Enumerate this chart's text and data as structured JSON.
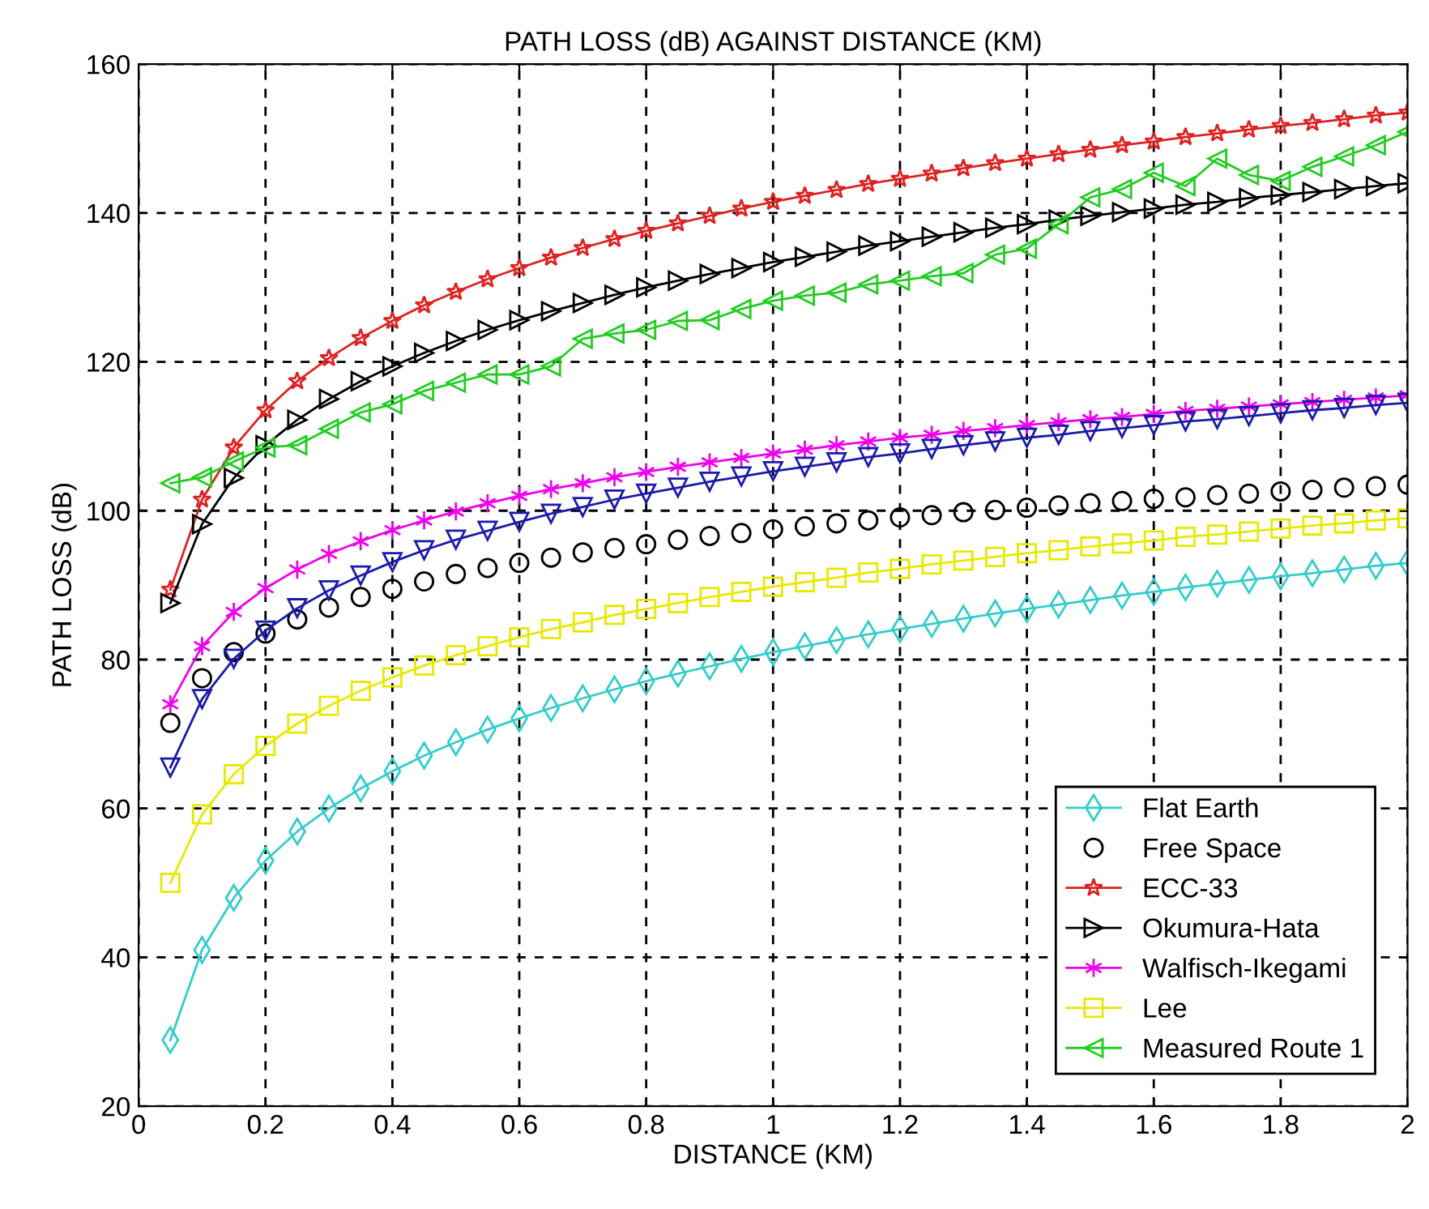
{
  "chart_data": {
    "type": "line",
    "title": "PATH LOSS (dB) AGAINST DISTANCE (KM)",
    "xlabel": "DISTANCE (KM)",
    "ylabel": "PATH LOSS (dB)",
    "x": [
      0.05,
      0.1,
      0.15,
      0.2,
      0.25,
      0.3,
      0.35,
      0.4,
      0.45,
      0.5,
      0.55,
      0.6,
      0.65,
      0.7,
      0.75,
      0.8,
      0.85,
      0.9,
      0.95,
      1.0,
      1.05,
      1.1,
      1.15,
      1.2,
      1.25,
      1.3,
      1.35,
      1.4,
      1.45,
      1.5,
      1.55,
      1.6,
      1.65,
      1.7,
      1.75,
      1.8,
      1.85,
      1.9,
      1.95,
      2.0
    ],
    "series": [
      {
        "name": "Flat Earth",
        "color": "#33cccc",
        "marker": "diamond",
        "values": [
          28.9,
          41.0,
          48.0,
          53.0,
          56.9,
          60.0,
          62.7,
          65.0,
          67.1,
          68.9,
          70.6,
          72.1,
          73.5,
          74.8,
          76.0,
          77.1,
          78.1,
          79.1,
          80.1,
          81.0,
          81.8,
          82.6,
          83.4,
          84.1,
          84.8,
          85.5,
          86.2,
          86.8,
          87.4,
          88.0,
          88.6,
          89.1,
          89.7,
          90.2,
          90.7,
          91.2,
          91.6,
          92.1,
          92.6,
          93.0
        ]
      },
      {
        "name": "Free Space",
        "color": "#000000",
        "type": "scatter",
        "marker": "circle",
        "values": [
          71.5,
          77.5,
          81.0,
          83.5,
          85.4,
          87.0,
          88.4,
          89.5,
          90.5,
          91.5,
          92.3,
          93.0,
          93.7,
          94.4,
          95.0,
          95.5,
          96.1,
          96.6,
          97.0,
          97.5,
          97.9,
          98.3,
          98.7,
          99.1,
          99.4,
          99.8,
          100.1,
          100.4,
          100.7,
          101.0,
          101.3,
          101.6,
          101.8,
          102.1,
          102.3,
          102.6,
          102.8,
          103.1,
          103.3,
          103.5
        ]
      },
      {
        "name": "ECC-33",
        "color": "#dd2222",
        "marker": "star",
        "values": [
          89.4,
          101.5,
          108.5,
          113.5,
          117.4,
          120.5,
          123.2,
          125.5,
          127.6,
          129.4,
          131.1,
          132.6,
          134.0,
          135.3,
          136.5,
          137.6,
          138.6,
          139.6,
          140.6,
          141.5,
          142.3,
          143.1,
          143.9,
          144.6,
          145.3,
          146.0,
          146.7,
          147.3,
          147.9,
          148.5,
          149.1,
          149.6,
          150.2,
          150.7,
          151.2,
          151.7,
          152.1,
          152.6,
          153.1,
          153.5
        ]
      },
      {
        "name": "Okumura-Hata",
        "color": "#000000",
        "marker": "triangle-right",
        "values": [
          87.6,
          98.2,
          104.4,
          108.8,
          112.2,
          115.0,
          117.4,
          119.4,
          121.2,
          122.8,
          124.3,
          125.6,
          126.8,
          127.9,
          129.0,
          130.0,
          130.9,
          131.8,
          132.6,
          133.4,
          134.1,
          134.8,
          135.6,
          136.2,
          136.8,
          137.4,
          138.0,
          138.5,
          139.1,
          139.6,
          140.1,
          140.6,
          141.1,
          141.5,
          142.0,
          142.4,
          142.8,
          143.2,
          143.6,
          144.0
        ]
      },
      {
        "name": "Walfisch-Ikegami",
        "color": "#ee00ee",
        "marker": "cross",
        "values": [
          74.0,
          81.8,
          86.4,
          89.6,
          92.1,
          94.2,
          95.9,
          97.4,
          98.7,
          99.9,
          101.0,
          102.0,
          102.9,
          103.7,
          104.5,
          105.2,
          105.9,
          106.5,
          107.1,
          107.7,
          108.2,
          108.8,
          109.3,
          109.8,
          110.2,
          110.7,
          111.1,
          111.5,
          111.9,
          112.3,
          112.6,
          113.0,
          113.4,
          113.7,
          114.0,
          114.3,
          114.6,
          114.9,
          115.2,
          115.5
        ]
      },
      {
        "color": "#1a1aaa",
        "marker": "triangle-down",
        "values": [
          65.5,
          74.7,
          80.1,
          83.9,
          86.9,
          89.3,
          91.3,
          93.1,
          94.7,
          96.1,
          97.3,
          98.5,
          99.6,
          100.5,
          101.5,
          102.3,
          103.1,
          103.9,
          104.6,
          105.3,
          105.9,
          106.5,
          107.2,
          107.7,
          108.3,
          108.8,
          109.3,
          109.8,
          110.2,
          110.7,
          111.1,
          111.5,
          112.0,
          112.3,
          112.7,
          113.1,
          113.5,
          113.8,
          114.2,
          114.5
        ]
      },
      {
        "name": "Lee",
        "color": "#e8e800",
        "marker": "square",
        "values": [
          50.0,
          59.2,
          64.6,
          68.4,
          71.4,
          73.8,
          75.8,
          77.6,
          79.2,
          80.6,
          81.8,
          83.0,
          84.1,
          85.0,
          86.0,
          86.8,
          87.6,
          88.4,
          89.1,
          89.8,
          90.4,
          91.0,
          91.7,
          92.2,
          92.8,
          93.3,
          93.8,
          94.3,
          94.7,
          95.2,
          95.6,
          96.0,
          96.5,
          96.8,
          97.2,
          97.6,
          98.0,
          98.3,
          98.7,
          99.0
        ]
      },
      {
        "name": "Measured Route 1",
        "color": "#22cc22",
        "marker": "triangle-left",
        "values": [
          103.7,
          104.5,
          106.6,
          108.5,
          108.8,
          111.0,
          113.2,
          114.3,
          116.1,
          117.2,
          118.3,
          118.3,
          119.4,
          123.1,
          123.8,
          124.3,
          125.5,
          125.6,
          127.1,
          128.2,
          128.9,
          129.3,
          130.4,
          130.9,
          131.5,
          131.9,
          134.4,
          135.2,
          138.5,
          142.1,
          143.2,
          145.4,
          143.6,
          147.3,
          145.1,
          144.3,
          146.2,
          147.6,
          149.1,
          150.9
        ]
      }
    ],
    "xlim": [
      0,
      2
    ],
    "ylim": [
      20,
      160
    ],
    "xticks": [
      0,
      0.2,
      0.4,
      0.6,
      0.8,
      1,
      1.2,
      1.4,
      1.6,
      1.8,
      2
    ],
    "yticks": [
      20,
      40,
      60,
      80,
      100,
      120,
      140,
      160
    ],
    "grid": true,
    "legend": "bottom right"
  }
}
